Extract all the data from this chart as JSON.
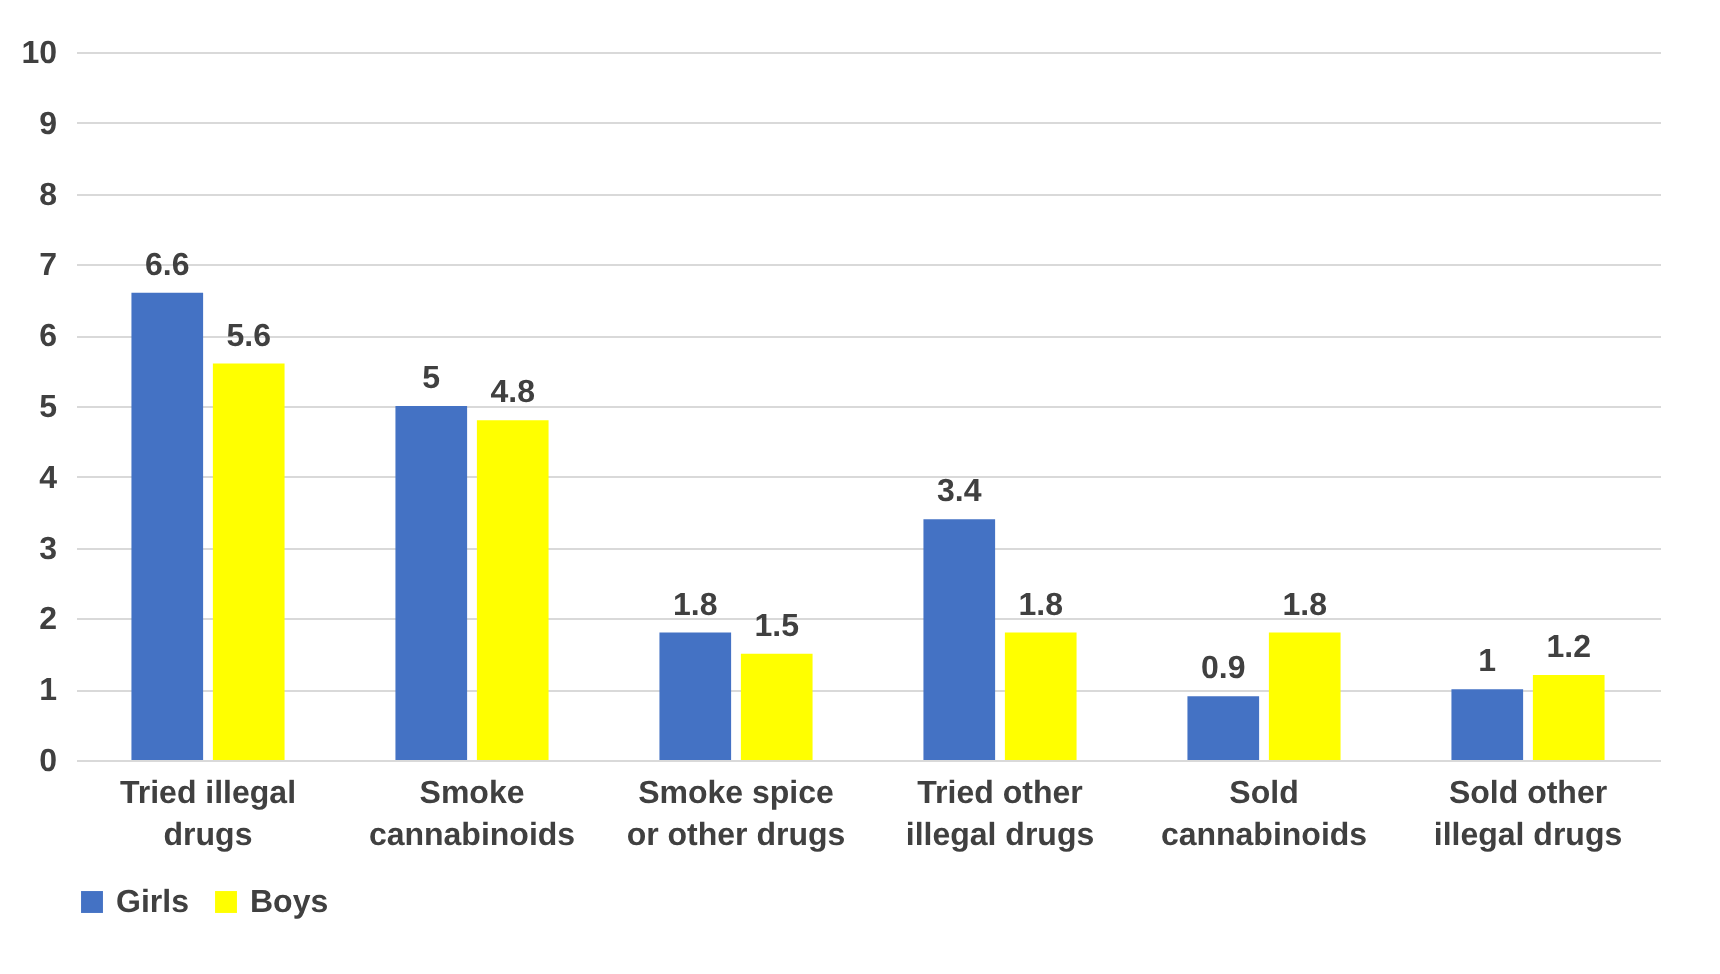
{
  "chart_data": {
    "type": "bar",
    "categories": [
      "Tried illegal drugs",
      "Smoke cannabinoids",
      "Smoke spice or other drugs",
      "Tried other illegal drugs",
      "Sold cannabinoids",
      "Sold other illegal drugs"
    ],
    "series": [
      {
        "name": "Girls",
        "color": "#4472c4",
        "values": [
          6.6,
          5,
          1.8,
          3.4,
          0.9,
          1
        ]
      },
      {
        "name": "Boys",
        "color": "#ffff00",
        "values": [
          5.6,
          4.8,
          1.5,
          1.8,
          1.8,
          1.2
        ]
      }
    ],
    "ylim": [
      0,
      10
    ],
    "yticks": [
      0,
      1,
      2,
      3,
      4,
      5,
      6,
      7,
      8,
      9,
      10
    ],
    "grid": "y",
    "legend": "bottom",
    "data_labels": true
  }
}
